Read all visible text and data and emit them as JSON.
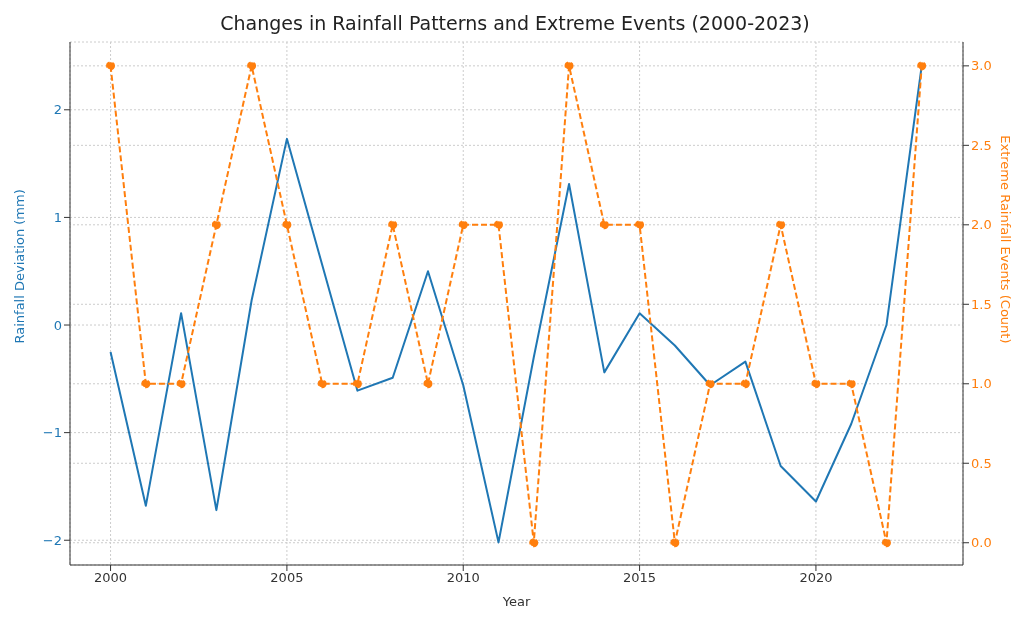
{
  "chart_data": {
    "type": "line",
    "title": "Changes in Rainfall Patterns and Extreme Events (2000-2023)",
    "xlabel": "Year",
    "ylabel": "Rainfall Deviation (mm)",
    "y2label": "Extreme Rainfall Events (Count)",
    "x": [
      2000,
      2001,
      2002,
      2003,
      2004,
      2005,
      2006,
      2007,
      2008,
      2009,
      2010,
      2011,
      2012,
      2013,
      2014,
      2015,
      2016,
      2017,
      2018,
      2019,
      2020,
      2021,
      2022,
      2023
    ],
    "series": [
      {
        "color": "#1f77b4",
        "marker": "none",
        "line_style": "solid",
        "values": [
          -0.25,
          -1.68,
          0.11,
          -1.72,
          0.23,
          1.73,
          0.56,
          -0.61,
          -0.49,
          0.5,
          -0.56,
          -2.02,
          -0.3,
          1.31,
          -0.44,
          0.11,
          -0.19,
          -0.56,
          -0.34,
          -1.31,
          -1.64,
          -0.92,
          0.0,
          2.41
        ]
      },
      {
        "axis": "y2",
        "color": "#ff7f0e",
        "marker": "circle",
        "line_style": "dashed",
        "values": [
          3,
          1,
          1,
          2,
          3,
          2,
          1,
          1,
          2,
          1,
          2,
          2,
          0,
          3,
          2,
          2,
          0,
          1,
          1,
          2,
          1,
          1,
          0,
          3
        ]
      }
    ],
    "xlim": [
      1998.85,
      2024.17
    ],
    "xticks": [
      2000,
      2005,
      2010,
      2015,
      2020
    ],
    "ylim": [
      -2.23,
      2.63
    ],
    "yticks": [
      {
        "value": -2,
        "label": "−2"
      },
      {
        "value": -1,
        "label": "−1"
      },
      0,
      1,
      2
    ],
    "y2lim": [
      -0.14,
      3.15
    ],
    "y2ticks": [
      {
        "value": 0,
        "label": "0.0"
      },
      {
        "value": 0.5,
        "label": "0.5"
      },
      {
        "value": 1,
        "label": "1.0"
      },
      {
        "value": 1.5,
        "label": "1.5"
      },
      {
        "value": 2,
        "label": "2.0"
      },
      {
        "value": 2.5,
        "label": "2.5"
      },
      {
        "value": 3,
        "label": "3.0"
      }
    ],
    "grid": true,
    "legend": false
  }
}
